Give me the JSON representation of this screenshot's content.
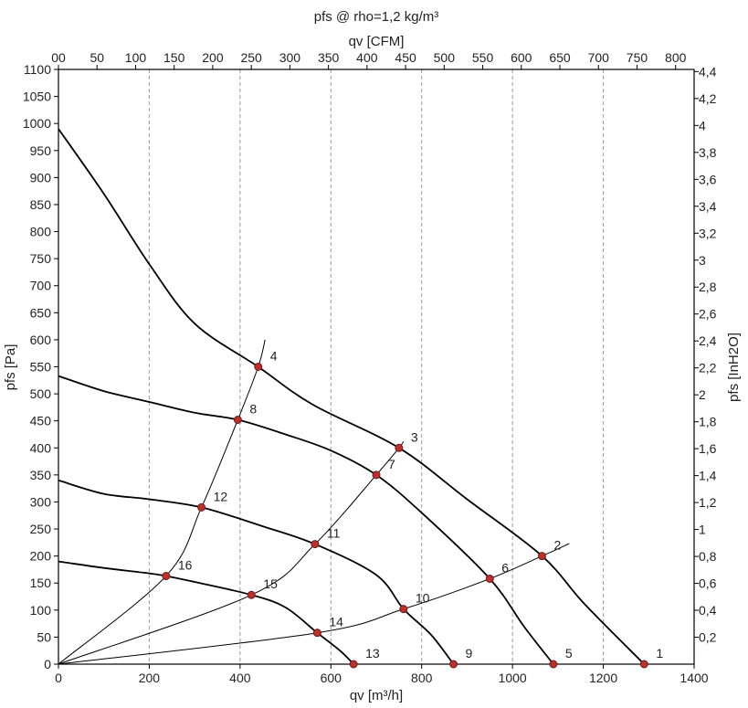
{
  "chart_data": {
    "type": "line",
    "title": "pfs @ rho=1,2 kg/m³",
    "xlabel": "qv [m³/h]",
    "x2label": "qv [CFM]",
    "ylabel": "pfs [Pa]",
    "y2label": "pfs [InH2O]",
    "xlim": [
      0,
      1400
    ],
    "ylim": [
      0,
      1100
    ],
    "grid": "dashed vertical",
    "x_ticks": [
      "0",
      "200",
      "400",
      "600",
      "800",
      "1000",
      "1200",
      "1400"
    ],
    "x_tick_values": [
      0,
      200,
      400,
      600,
      800,
      1000,
      1200,
      1400
    ],
    "x2_ticks": [
      "00",
      "50",
      "100",
      "150",
      "200",
      "250",
      "300",
      "350",
      "400",
      "450",
      "500",
      "550",
      "600",
      "650",
      "700",
      "750",
      "800"
    ],
    "x2_tick_values_cfm": [
      0,
      50,
      100,
      150,
      200,
      250,
      300,
      350,
      400,
      450,
      500,
      550,
      600,
      650,
      700,
      750,
      800
    ],
    "y_ticks": [
      "0",
      "50",
      "100",
      "150",
      "200",
      "250",
      "300",
      "350",
      "400",
      "450",
      "500",
      "550",
      "600",
      "650",
      "700",
      "750",
      "800",
      "850",
      "900",
      "950",
      "1000",
      "1050",
      "1100"
    ],
    "y_tick_values": [
      0,
      50,
      100,
      150,
      200,
      250,
      300,
      350,
      400,
      450,
      500,
      550,
      600,
      650,
      700,
      750,
      800,
      850,
      900,
      950,
      1000,
      1050,
      1100
    ],
    "y2_ticks": [
      "0,2",
      "0,4",
      "0,6",
      "0,8",
      "1",
      "1,2",
      "1,4",
      "1,6",
      "1,8",
      "2",
      "2,2",
      "2,4",
      "2,6",
      "2,8",
      "3",
      "3,2",
      "3,4",
      "3,6",
      "3,8",
      "4",
      "4,2",
      "4,4"
    ],
    "y2_tick_values_inh2o": [
      0.2,
      0.4,
      0.6,
      0.8,
      1.0,
      1.2,
      1.4,
      1.6,
      1.8,
      2.0,
      2.2,
      2.4,
      2.6,
      2.8,
      3.0,
      3.2,
      3.4,
      3.6,
      3.8,
      4.0,
      4.2,
      4.4
    ],
    "series": [
      {
        "points": [
          [
            0,
            990
          ],
          [
            100,
            870
          ],
          [
            200,
            740
          ],
          [
            300,
            630
          ],
          [
            440,
            550
          ],
          [
            560,
            480
          ],
          [
            750,
            400
          ],
          [
            900,
            305
          ],
          [
            1065,
            200
          ],
          [
            1160,
            110
          ],
          [
            1290,
            0
          ]
        ]
      },
      {
        "points": [
          [
            0,
            533
          ],
          [
            100,
            505
          ],
          [
            200,
            485
          ],
          [
            300,
            465
          ],
          [
            395,
            452
          ],
          [
            500,
            425
          ],
          [
            600,
            395
          ],
          [
            700,
            350
          ],
          [
            800,
            280
          ],
          [
            950,
            158
          ],
          [
            1025,
            70
          ],
          [
            1090,
            0
          ]
        ]
      },
      {
        "points": [
          [
            0,
            340
          ],
          [
            100,
            315
          ],
          [
            200,
            305
          ],
          [
            315,
            290
          ],
          [
            450,
            255
          ],
          [
            565,
            222
          ],
          [
            700,
            165
          ],
          [
            760,
            102
          ],
          [
            820,
            55
          ],
          [
            870,
            0
          ]
        ]
      },
      {
        "points": [
          [
            0,
            190
          ],
          [
            100,
            178
          ],
          [
            200,
            168
          ],
          [
            237,
            163
          ],
          [
            300,
            152
          ],
          [
            425,
            128
          ],
          [
            500,
            105
          ],
          [
            570,
            58
          ],
          [
            620,
            25
          ],
          [
            650,
            0
          ]
        ]
      },
      {
        "points": [
          [
            0,
            0
          ],
          [
            237,
            163
          ],
          [
            315,
            290
          ],
          [
            395,
            452
          ],
          [
            440,
            550
          ],
          [
            455,
            600
          ]
        ]
      },
      {
        "points": [
          [
            0,
            0
          ],
          [
            425,
            128
          ],
          [
            565,
            222
          ],
          [
            700,
            350
          ],
          [
            750,
            400
          ],
          [
            760,
            412
          ]
        ]
      },
      {
        "points": [
          [
            0,
            0
          ],
          [
            570,
            58
          ],
          [
            760,
            102
          ],
          [
            950,
            158
          ],
          [
            1065,
            200
          ],
          [
            1125,
            223
          ]
        ]
      }
    ],
    "operating_points": [
      {
        "label": "1",
        "x": 1290,
        "y": 0
      },
      {
        "label": "2",
        "x": 1065,
        "y": 200
      },
      {
        "label": "3",
        "x": 750,
        "y": 400
      },
      {
        "label": "4",
        "x": 440,
        "y": 550
      },
      {
        "label": "5",
        "x": 1090,
        "y": 0
      },
      {
        "label": "6",
        "x": 950,
        "y": 158
      },
      {
        "label": "7",
        "x": 700,
        "y": 350
      },
      {
        "label": "8",
        "x": 395,
        "y": 452
      },
      {
        "label": "9",
        "x": 870,
        "y": 0
      },
      {
        "label": "10",
        "x": 760,
        "y": 102
      },
      {
        "label": "11",
        "x": 565,
        "y": 222
      },
      {
        "label": "12",
        "x": 315,
        "y": 290
      },
      {
        "label": "13",
        "x": 650,
        "y": 0
      },
      {
        "label": "14",
        "x": 570,
        "y": 58
      },
      {
        "label": "15",
        "x": 425,
        "y": 128
      },
      {
        "label": "16",
        "x": 237,
        "y": 163
      }
    ]
  }
}
